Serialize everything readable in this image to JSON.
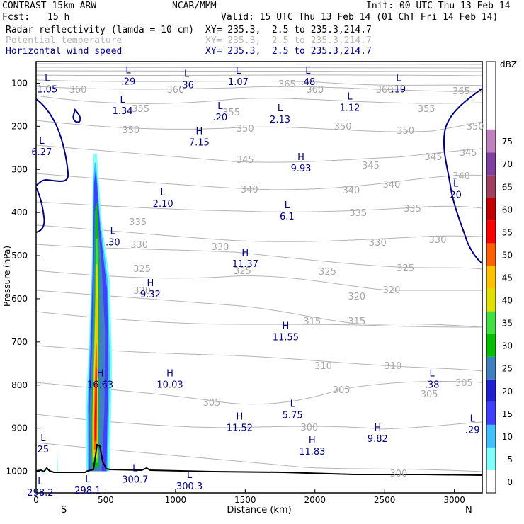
{
  "header": {
    "model": "CONTRAST 15km ARW",
    "org": "NCAR/MMM",
    "init": "Init: 00 UTC Thu 13 Feb 14",
    "fcst_label": "Fcst:",
    "fcst_value": "15 h",
    "valid": "Valid: 15 UTC Thu 13 Feb 14 (01 ChT Fri 14 Feb 14)",
    "fields": [
      {
        "name": "Radar reflectivity (lamda = 10 cm)",
        "xy": "XY= 235.3,  2.5 to 235.3,214.7",
        "color": "#000000"
      },
      {
        "name": "Potential temperature",
        "xy": "XY= 235.3,  2.5 to 235.3,214.7",
        "color": "#b8b8b8"
      },
      {
        "name": "Horizontal wind speed",
        "xy": "XY= 235.3,  2.5 to 235.3,214.7",
        "color": "#000080"
      }
    ]
  },
  "chart_data": {
    "type": "heatmap",
    "title": "",
    "xlabel": "Distance (km)",
    "ylabel": "Pressure (hPa)",
    "xlim": [
      0,
      3200
    ],
    "ylim": [
      1050,
      50
    ],
    "xticks": [
      0,
      500,
      1000,
      1500,
      2000,
      2500,
      3000
    ],
    "yticks": [
      100,
      200,
      300,
      400,
      500,
      600,
      700,
      800,
      900,
      1000
    ],
    "x_end_labels": {
      "left": "S",
      "right": "N"
    },
    "colorbar": {
      "unit": "dBZ",
      "levels": [
        0,
        5,
        10,
        15,
        20,
        25,
        30,
        35,
        40,
        45,
        50,
        55,
        60,
        65,
        70,
        75
      ],
      "colors": [
        "#ffffff",
        "#80ffff",
        "#40c0ff",
        "#4040ff",
        "#2020d0",
        "#4080c0",
        "#00c000",
        "#40e040",
        "#e0e000",
        "#ffc000",
        "#ff6000",
        "#ff0000",
        "#c00000",
        "#a04060",
        "#8040a0",
        "#c080c0"
      ]
    },
    "theta_contours": [
      {
        "value": "360",
        "labels_x": [
          300,
          1000,
          2000,
          2500
        ]
      },
      {
        "value": "365",
        "labels_x": [
          1800,
          3050
        ]
      },
      {
        "value": "355",
        "labels_x": [
          750,
          1400,
          2800
        ]
      },
      {
        "value": "350",
        "labels_x": [
          680,
          1500,
          2200,
          2650,
          3150
        ]
      },
      {
        "value": "345",
        "labels_x": [
          1500,
          2400,
          2850,
          3100
        ]
      },
      {
        "value": "340",
        "labels_x": [
          1530,
          2260,
          2550,
          3050
        ]
      },
      {
        "value": "335",
        "labels_x": [
          730,
          2310,
          2700
        ]
      },
      {
        "value": "330",
        "labels_x": [
          740,
          1320,
          2450,
          2880
        ]
      },
      {
        "value": "325",
        "labels_x": [
          760,
          1480,
          2090,
          2650
        ]
      },
      {
        "value": "320",
        "labels_x": [
          760,
          2300,
          2550
        ]
      },
      {
        "value": "315",
        "labels_x": [
          1980,
          2300
        ]
      },
      {
        "value": "310",
        "labels_x": [
          2060,
          2560
        ]
      },
      {
        "value": "305",
        "labels_x": [
          1260,
          2190,
          2820,
          3070
        ]
      },
      {
        "value": "300",
        "labels_x": [
          2600,
          1960
        ]
      }
    ],
    "wind_markers": [
      {
        "type": "L",
        "value": "1.05",
        "x": 80,
        "p": 105
      },
      {
        "type": "L",
        "value": ".29",
        "x": 660,
        "p": 87
      },
      {
        "type": "L",
        "value": ".36",
        "x": 1080,
        "p": 95
      },
      {
        "type": "L",
        "value": "1.07",
        "x": 1450,
        "p": 88
      },
      {
        "type": "L",
        "value": ".48",
        "x": 1950,
        "p": 88
      },
      {
        "type": "L",
        "value": ".19",
        "x": 2600,
        "p": 105
      },
      {
        "type": "L",
        "value": "1.34",
        "x": 620,
        "p": 155
      },
      {
        "type": "L",
        "value": "1.12",
        "x": 2250,
        "p": 148
      },
      {
        "type": "L",
        "value": ".20",
        "x": 1320,
        "p": 170
      },
      {
        "type": "L",
        "value": "2.13",
        "x": 1750,
        "p": 175
      },
      {
        "type": "L",
        "value": "6.27",
        "x": 40,
        "p": 250
      },
      {
        "type": "H",
        "value": "7.15",
        "x": 1170,
        "p": 228
      },
      {
        "type": "H",
        "value": "9.93",
        "x": 1900,
        "p": 288
      },
      {
        "type": "L",
        "value": "2.10",
        "x": 910,
        "p": 370
      },
      {
        "type": "L",
        "value": "20",
        "x": 3010,
        "p": 350
      },
      {
        "type": "L",
        "value": "6.1",
        "x": 1800,
        "p": 400
      },
      {
        "type": "L",
        "value": ".30",
        "x": 550,
        "p": 460
      },
      {
        "type": "H",
        "value": "11.37",
        "x": 1500,
        "p": 510
      },
      {
        "type": "H",
        "value": "9.32",
        "x": 820,
        "p": 580
      },
      {
        "type": "H",
        "value": "11.55",
        "x": 1790,
        "p": 680
      },
      {
        "type": "H",
        "value": "16.63",
        "x": 460,
        "p": 790
      },
      {
        "type": "H",
        "value": "10.03",
        "x": 960,
        "p": 790
      },
      {
        "type": "L",
        "value": ".38",
        "x": 2840,
        "p": 790
      },
      {
        "type": "L",
        "value": "5.75",
        "x": 1840,
        "p": 860
      },
      {
        "type": "H",
        "value": "11.52",
        "x": 1460,
        "p": 890
      },
      {
        "type": "H",
        "value": "9.82",
        "x": 2450,
        "p": 915
      },
      {
        "type": "L",
        "value": ".29",
        "x": 3130,
        "p": 895
      },
      {
        "type": "H",
        "value": "11.83",
        "x": 1980,
        "p": 945
      },
      {
        "type": "L",
        "value": "25",
        "x": 50,
        "p": 940
      },
      {
        "type": "L",
        "value": "300.7",
        "x": 710,
        "p": 1010
      },
      {
        "type": "L",
        "value": "300.3",
        "x": 1100,
        "p": 1025
      },
      {
        "type": "L",
        "value": "298.1",
        "x": 370,
        "p": 1035
      },
      {
        "type": "L",
        "value": "298.2",
        "x": 30,
        "p": 1040
      }
    ]
  }
}
